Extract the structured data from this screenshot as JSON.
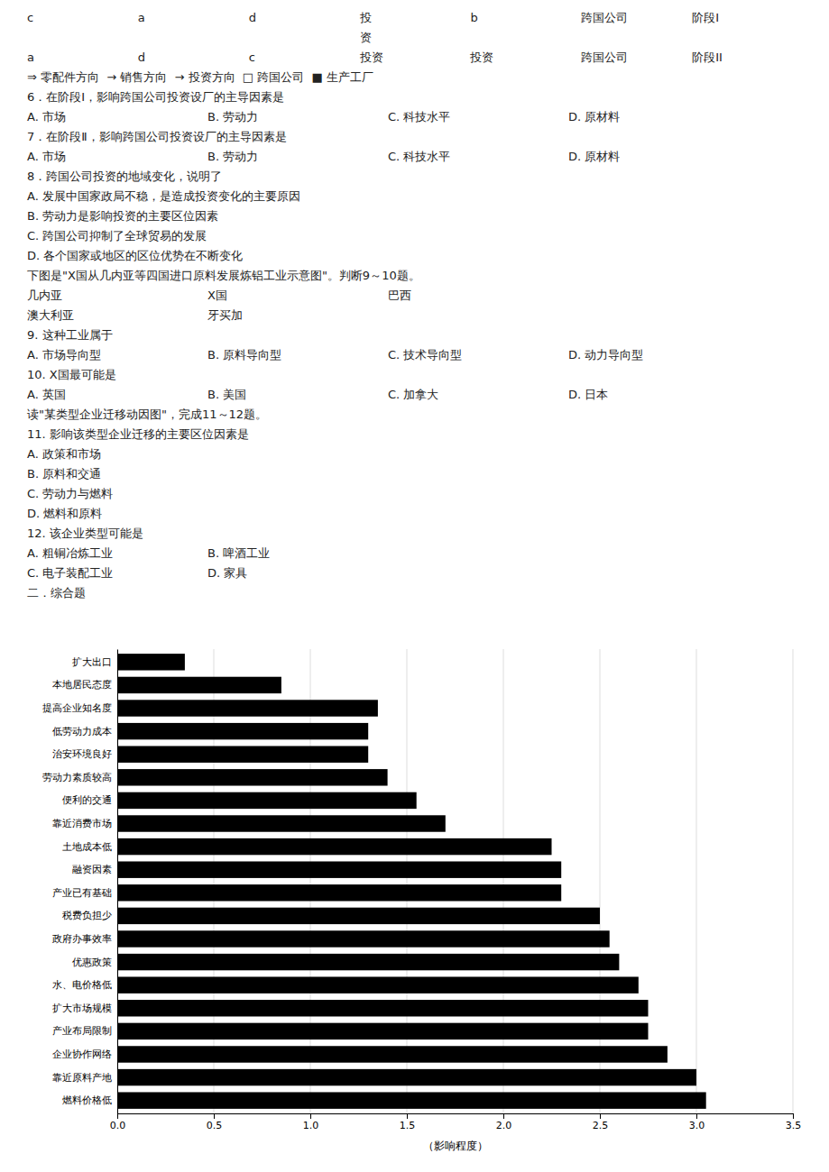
{
  "chart_data": {
    "type": "bar",
    "orientation": "horizontal",
    "categories": [
      "扩大出口",
      "本地居民态度",
      "提高企业知名度",
      "低劳动力成本",
      "治安环境良好",
      "劳动力素质较高",
      "便利的交通",
      "靠近消费市场",
      "土地成本低",
      "融资因素",
      "产业已有基础",
      "税费负担少",
      "政府办事效率",
      "优惠政策",
      "水、电价格低",
      "扩大市场规模",
      "产业布局限制",
      "企业协作网络",
      "靠近原料产地",
      "燃料价格低"
    ],
    "values": [
      0.35,
      0.85,
      1.35,
      1.3,
      1.3,
      1.4,
      1.55,
      1.7,
      2.25,
      2.3,
      2.3,
      2.5,
      2.55,
      2.6,
      2.7,
      2.75,
      2.75,
      2.85,
      3.0,
      3.05
    ],
    "color": "#000000",
    "xlabel": "（影响程度）",
    "xlim": [
      0,
      3.5
    ],
    "xticks": [
      {
        "value": 0,
        "label": "0.0"
      },
      0.5,
      {
        "value": 1,
        "label": "1.0"
      },
      1.5,
      {
        "value": 2,
        "label": "2.0"
      },
      2.5,
      {
        "value": 3,
        "label": "3.0"
      },
      3.5
    ],
    "grid": true,
    "annotations": [
      [
        "c",
        "a",
        "d",
        "投\n资",
        "b",
        "跨国公司",
        "阶段I"
      ],
      [
        "a",
        "d",
        "c",
        "投资",
        "投资",
        "跨国公司",
        "阶段II"
      ],
      [
        "⇒ 零配件方向  → 销售方向  → 投资方向  □ 跨国公司  ■ 生产工厂"
      ],
      [
        "6．在阶段Ⅰ，影响跨国公司投资设厂的主导因素是"
      ],
      [
        "A. 市场",
        "B. 劳动力",
        "C. 科技水平",
        "D. 原材料"
      ],
      [
        "7．在阶段Ⅱ，影响跨国公司投资设厂的主导因素是"
      ],
      [
        "A. 市场",
        "B. 劳动力",
        "C. 科技水平",
        "D. 原材料"
      ],
      [
        "8．跨国公司投资的地域变化，说明了"
      ],
      [
        "A. 发展中国家政局不稳，是造成投资变化的主要原因"
      ],
      [
        "B. 劳动力是影响投资的主要区位因素"
      ],
      [
        "C. 跨国公司抑制了全球贸易的发展"
      ],
      [
        "D. 各个国家或地区的区位优势在不断变化"
      ],
      [
        "下图是\"X国从几内亚等四国进口原料发展炼铝工业示意图\"。判断9～10题。"
      ],
      [
        "几内亚",
        "X国",
        "巴西"
      ],
      [
        "澳大利亚",
        "牙买加"
      ],
      [
        "9. 这种工业属于"
      ],
      [
        "A. 市场导向型",
        "B. 原料导向型",
        "C. 技术导向型",
        "D. 动力导向型"
      ],
      [
        "10. X国最可能是"
      ],
      [
        "A. 英国",
        "B. 美国",
        "C. 加拿大",
        "D. 日本"
      ],
      [
        "读\"某类型企业迁移动因图\"，完成11～12题。"
      ],
      [
        "11. 影响该类型企业迁移的主要区位因素是"
      ],
      [
        "A. 政策和市场"
      ],
      [
        "B. 原料和交通"
      ],
      [
        "C. 劳动力与燃料"
      ],
      [
        "D. 燃料和原料"
      ],
      [
        "12. 该企业类型可能是"
      ],
      [
        "A. 粗铜冶炼工业",
        "B. 啤酒工业"
      ],
      [
        "C. 电子装配工业",
        "D. 家具"
      ],
      [
        "二．综合题"
      ]
    ]
  }
}
